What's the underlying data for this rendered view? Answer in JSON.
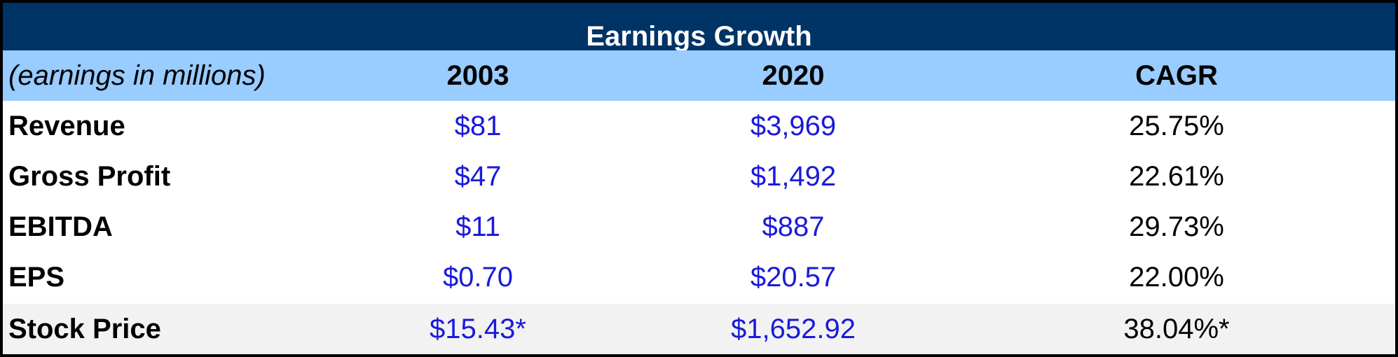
{
  "table": {
    "title": "Earnings Growth",
    "header": {
      "unit_note": "(earnings in millions)",
      "col_2003": "2003",
      "col_2020": "2020",
      "col_cagr": "CAGR"
    },
    "rows": [
      {
        "label": "Revenue",
        "v2003": "$81",
        "v2020": "$3,969",
        "cagr": "25.75%"
      },
      {
        "label": "Gross Profit",
        "v2003": "$47",
        "v2020": "$1,492",
        "cagr": "22.61%"
      },
      {
        "label": "EBITDA",
        "v2003": "$11",
        "v2020": "$887",
        "cagr": "29.73%"
      },
      {
        "label": "EPS",
        "v2003": "$0.70",
        "v2020": "$20.57",
        "cagr": "22.00%"
      },
      {
        "label": "Stock Price",
        "v2003": "$15.43*",
        "v2020": "$1,652.92",
        "cagr": "38.04%*"
      }
    ]
  },
  "colors": {
    "title_bg": "#003366",
    "header_bg": "#99ccff",
    "value_blue": "#1a1adb",
    "shaded_row_bg": "#f2f2f2"
  }
}
